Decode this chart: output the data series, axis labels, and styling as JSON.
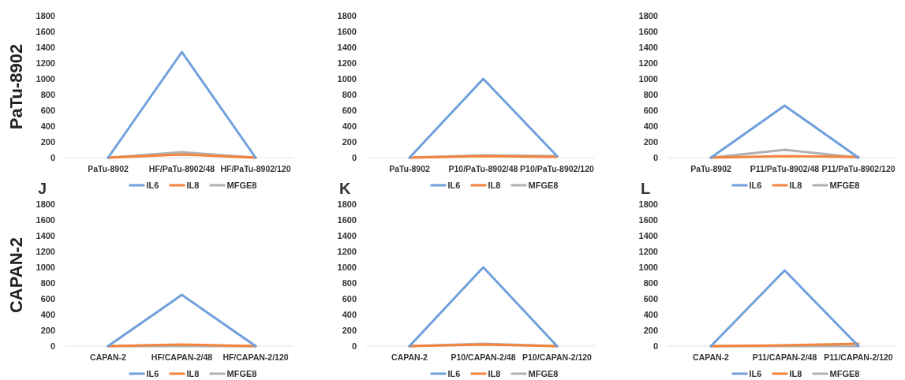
{
  "chart_data": [
    {
      "type": "line",
      "ylabel": "PaTu-8902",
      "categories": [
        "PaTu-8902",
        "HF/PaTu-8902/48",
        "HF/PaTu-8902/120"
      ],
      "ylim": [
        0,
        1800
      ],
      "yticks": [
        0,
        200,
        400,
        600,
        800,
        1000,
        1200,
        1400,
        1600,
        1800
      ],
      "legend": "bottom",
      "series": [
        {
          "name": "IL6",
          "color": "#6fa0dc",
          "values": [
            0,
            1340,
            0
          ]
        },
        {
          "name": "IL8",
          "color": "#f4843c",
          "values": [
            0,
            40,
            0
          ]
        },
        {
          "name": "MFGE8",
          "color": "#b0b0b0",
          "values": [
            0,
            70,
            0
          ]
        }
      ]
    },
    {
      "type": "line",
      "categories": [
        "PaTu-8902",
        "P10/PaTu-8902/48",
        "P10/PaTu-8902/120"
      ],
      "ylim": [
        0,
        1800
      ],
      "yticks": [
        0,
        200,
        400,
        600,
        800,
        1000,
        1200,
        1400,
        1600,
        1800
      ],
      "legend": "bottom",
      "series": [
        {
          "name": "IL6",
          "color": "#6fa0dc",
          "values": [
            0,
            1000,
            20
          ]
        },
        {
          "name": "IL8",
          "color": "#f4843c",
          "values": [
            0,
            20,
            10
          ]
        },
        {
          "name": "MFGE8",
          "color": "#b0b0b0",
          "values": [
            0,
            30,
            20
          ]
        }
      ]
    },
    {
      "type": "line",
      "categories": [
        "PaTu-8902",
        "P11/PaTu-8902/48",
        "P11/PaTu-8902/120"
      ],
      "ylim": [
        0,
        1800
      ],
      "yticks": [
        0,
        200,
        400,
        600,
        800,
        1000,
        1200,
        1400,
        1600,
        1800
      ],
      "legend": "bottom",
      "series": [
        {
          "name": "IL6",
          "color": "#6fa0dc",
          "values": [
            0,
            660,
            0
          ]
        },
        {
          "name": "IL8",
          "color": "#f4843c",
          "values": [
            0,
            20,
            10
          ]
        },
        {
          "name": "MFGE8",
          "color": "#b0b0b0",
          "values": [
            0,
            100,
            0
          ]
        }
      ]
    },
    {
      "type": "line",
      "title": "J",
      "ylabel": "CAPAN-2",
      "categories": [
        "CAPAN-2",
        "HF/CAPAN-2/48",
        "HF/CAPAN-2/120"
      ],
      "ylim": [
        0,
        1800
      ],
      "yticks": [
        0,
        200,
        400,
        600,
        800,
        1000,
        1200,
        1400,
        1600,
        1800
      ],
      "legend": "bottom",
      "series": [
        {
          "name": "IL6",
          "color": "#6fa0dc",
          "values": [
            0,
            650,
            0
          ]
        },
        {
          "name": "IL8",
          "color": "#f4843c",
          "values": [
            0,
            20,
            0
          ]
        },
        {
          "name": "MFGE8",
          "color": "#b0b0b0",
          "values": [
            0,
            0,
            0
          ]
        }
      ]
    },
    {
      "type": "line",
      "title": "K",
      "categories": [
        "CAPAN-2",
        "P10/CAPAN-2/48",
        "P10/CAPAN-2/120"
      ],
      "ylim": [
        0,
        1800
      ],
      "yticks": [
        0,
        200,
        400,
        600,
        800,
        1000,
        1200,
        1400,
        1600,
        1800
      ],
      "legend": "bottom",
      "series": [
        {
          "name": "IL6",
          "color": "#6fa0dc",
          "values": [
            0,
            1000,
            0
          ]
        },
        {
          "name": "IL8",
          "color": "#f4843c",
          "values": [
            0,
            20,
            0
          ]
        },
        {
          "name": "MFGE8",
          "color": "#b0b0b0",
          "values": [
            0,
            30,
            0
          ]
        }
      ]
    },
    {
      "type": "line",
      "title": "L",
      "categories": [
        "CAPAN-2",
        "P11/CAPAN-2/48",
        "P11/CAPAN-2/120"
      ],
      "ylim": [
        0,
        1800
      ],
      "yticks": [
        0,
        200,
        400,
        600,
        800,
        1000,
        1200,
        1400,
        1600,
        1800
      ],
      "legend": "bottom",
      "series": [
        {
          "name": "IL6",
          "color": "#6fa0dc",
          "values": [
            0,
            960,
            0
          ]
        },
        {
          "name": "IL8",
          "color": "#f4843c",
          "values": [
            0,
            10,
            30
          ]
        },
        {
          "name": "MFGE8",
          "color": "#b0b0b0",
          "values": [
            0,
            0,
            0
          ]
        }
      ]
    }
  ]
}
